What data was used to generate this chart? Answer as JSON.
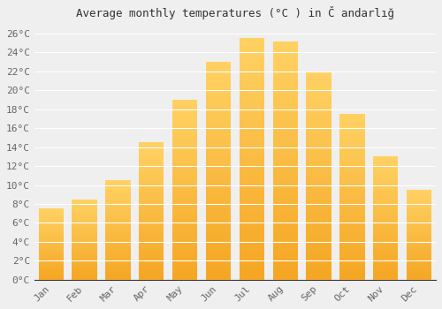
{
  "title": "Average monthly temperatures (°C ) in Č andarlığ",
  "months": [
    "Jan",
    "Feb",
    "Mar",
    "Apr",
    "May",
    "Jun",
    "Jul",
    "Aug",
    "Sep",
    "Oct",
    "Nov",
    "Dec"
  ],
  "values": [
    7.5,
    8.5,
    10.5,
    14.5,
    19.0,
    23.0,
    25.5,
    25.2,
    22.0,
    17.5,
    13.0,
    9.5
  ],
  "bar_color_bottom": "#F5A623",
  "bar_color_top": "#FFD966",
  "background_color": "#EFEFEF",
  "plot_bg_color": "#EFEFEF",
  "grid_color": "#FFFFFF",
  "ylim": [
    0,
    27
  ],
  "ytick_step": 2,
  "title_fontsize": 9,
  "tick_fontsize": 8,
  "font_family": "monospace"
}
